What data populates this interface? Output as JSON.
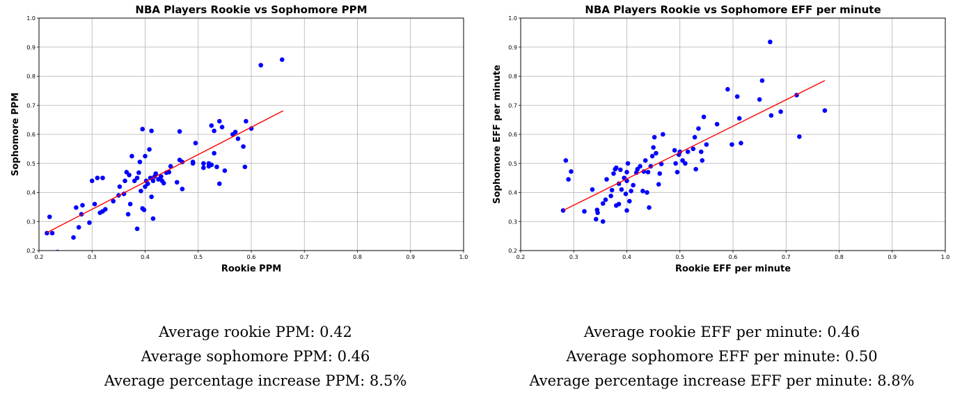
{
  "chart_data": [
    {
      "type": "scatter",
      "title": "NBA Players Rookie vs Sophomore PPM",
      "xlabel": "Rookie PPM",
      "ylabel": "Sophomore PPM",
      "xlim": [
        0.2,
        1.0
      ],
      "ylim": [
        0.2,
        1.0
      ],
      "xticks": [
        "0.2",
        "0.3",
        "0.4",
        "0.5",
        "0.6",
        "0.7",
        "0.8",
        "0.9",
        "1.0"
      ],
      "yticks": [
        "0.2",
        "0.3",
        "0.4",
        "0.5",
        "0.6",
        "0.7",
        "0.8",
        "0.9",
        "1.0"
      ],
      "grid": true,
      "point_color": "#0000ff",
      "line_color": "#ff0000",
      "trendline": {
        "x": [
          0.215,
          0.66
        ],
        "y": [
          0.262,
          0.681
        ]
      },
      "points": [
        [
          0.215,
          0.26
        ],
        [
          0.22,
          0.316
        ],
        [
          0.225,
          0.26
        ],
        [
          0.235,
          0.195
        ],
        [
          0.265,
          0.245
        ],
        [
          0.27,
          0.348
        ],
        [
          0.275,
          0.28
        ],
        [
          0.28,
          0.325
        ],
        [
          0.282,
          0.356
        ],
        [
          0.295,
          0.296
        ],
        [
          0.3,
          0.44
        ],
        [
          0.305,
          0.36
        ],
        [
          0.31,
          0.45
        ],
        [
          0.315,
          0.33
        ],
        [
          0.32,
          0.45
        ],
        [
          0.32,
          0.335
        ],
        [
          0.325,
          0.342
        ],
        [
          0.34,
          0.37
        ],
        [
          0.35,
          0.39
        ],
        [
          0.352,
          0.42
        ],
        [
          0.36,
          0.395
        ],
        [
          0.362,
          0.44
        ],
        [
          0.365,
          0.47
        ],
        [
          0.368,
          0.325
        ],
        [
          0.37,
          0.46
        ],
        [
          0.372,
          0.36
        ],
        [
          0.375,
          0.525
        ],
        [
          0.38,
          0.44
        ],
        [
          0.385,
          0.275
        ],
        [
          0.385,
          0.45
        ],
        [
          0.388,
          0.468
        ],
        [
          0.39,
          0.505
        ],
        [
          0.392,
          0.405
        ],
        [
          0.395,
          0.618
        ],
        [
          0.395,
          0.345
        ],
        [
          0.398,
          0.34
        ],
        [
          0.4,
          0.42
        ],
        [
          0.4,
          0.525
        ],
        [
          0.402,
          0.44
        ],
        [
          0.405,
          0.43
        ],
        [
          0.408,
          0.548
        ],
        [
          0.41,
          0.45
        ],
        [
          0.412,
          0.612
        ],
        [
          0.412,
          0.385
        ],
        [
          0.415,
          0.31
        ],
        [
          0.415,
          0.44
        ],
        [
          0.418,
          0.455
        ],
        [
          0.42,
          0.465
        ],
        [
          0.425,
          0.445
        ],
        [
          0.43,
          0.455
        ],
        [
          0.432,
          0.44
        ],
        [
          0.435,
          0.432
        ],
        [
          0.44,
          0.468
        ],
        [
          0.445,
          0.47
        ],
        [
          0.448,
          0.49
        ],
        [
          0.46,
          0.435
        ],
        [
          0.465,
          0.512
        ],
        [
          0.465,
          0.61
        ],
        [
          0.47,
          0.412
        ],
        [
          0.47,
          0.505
        ],
        [
          0.49,
          0.5
        ],
        [
          0.495,
          0.57
        ],
        [
          0.49,
          0.505
        ],
        [
          0.51,
          0.5
        ],
        [
          0.51,
          0.485
        ],
        [
          0.52,
          0.5
        ],
        [
          0.52,
          0.49
        ],
        [
          0.525,
          0.495
        ],
        [
          0.525,
          0.63
        ],
        [
          0.53,
          0.612
        ],
        [
          0.53,
          0.535
        ],
        [
          0.535,
          0.488
        ],
        [
          0.54,
          0.43
        ],
        [
          0.54,
          0.645
        ],
        [
          0.545,
          0.625
        ],
        [
          0.55,
          0.475
        ],
        [
          0.565,
          0.6
        ],
        [
          0.57,
          0.608
        ],
        [
          0.575,
          0.585
        ],
        [
          0.585,
          0.558
        ],
        [
          0.588,
          0.488
        ],
        [
          0.59,
          0.645
        ],
        [
          0.6,
          0.62
        ],
        [
          0.618,
          0.838
        ],
        [
          0.658,
          0.857
        ]
      ]
    },
    {
      "type": "scatter",
      "title": "NBA Players Rookie vs Sophomore EFF per minute",
      "xlabel": "Rookie EFF per minute",
      "ylabel": "Sophomore EFF per minute",
      "xlim": [
        0.2,
        1.0
      ],
      "ylim": [
        0.2,
        1.0
      ],
      "xticks": [
        "0.2",
        "0.3",
        "0.4",
        "0.5",
        "0.6",
        "0.7",
        "0.8",
        "0.9",
        "1.0"
      ],
      "yticks": [
        "0.2",
        "0.3",
        "0.4",
        "0.5",
        "0.6",
        "0.7",
        "0.8",
        "0.9",
        "1.0"
      ],
      "grid": true,
      "point_color": "#0000ff",
      "line_color": "#ff0000",
      "trendline": {
        "x": [
          0.28,
          0.773
        ],
        "y": [
          0.338,
          0.785
        ]
      },
      "points": [
        [
          0.28,
          0.338
        ],
        [
          0.285,
          0.51
        ],
        [
          0.29,
          0.445
        ],
        [
          0.295,
          0.472
        ],
        [
          0.32,
          0.335
        ],
        [
          0.335,
          0.41
        ],
        [
          0.342,
          0.308
        ],
        [
          0.344,
          0.34
        ],
        [
          0.345,
          0.33
        ],
        [
          0.355,
          0.3
        ],
        [
          0.355,
          0.362
        ],
        [
          0.36,
          0.375
        ],
        [
          0.362,
          0.445
        ],
        [
          0.37,
          0.388
        ],
        [
          0.372,
          0.408
        ],
        [
          0.375,
          0.465
        ],
        [
          0.378,
          0.48
        ],
        [
          0.38,
          0.355
        ],
        [
          0.38,
          0.485
        ],
        [
          0.385,
          0.36
        ],
        [
          0.385,
          0.43
        ],
        [
          0.388,
          0.478
        ],
        [
          0.39,
          0.41
        ],
        [
          0.395,
          0.45
        ],
        [
          0.398,
          0.395
        ],
        [
          0.4,
          0.338
        ],
        [
          0.4,
          0.44
        ],
        [
          0.4,
          0.47
        ],
        [
          0.402,
          0.5
        ],
        [
          0.405,
          0.37
        ],
        [
          0.408,
          0.405
        ],
        [
          0.412,
          0.425
        ],
        [
          0.418,
          0.468
        ],
        [
          0.42,
          0.48
        ],
        [
          0.425,
          0.49
        ],
        [
          0.43,
          0.405
        ],
        [
          0.432,
          0.472
        ],
        [
          0.435,
          0.51
        ],
        [
          0.438,
          0.4
        ],
        [
          0.44,
          0.47
        ],
        [
          0.442,
          0.348
        ],
        [
          0.445,
          0.49
        ],
        [
          0.448,
          0.525
        ],
        [
          0.45,
          0.555
        ],
        [
          0.452,
          0.59
        ],
        [
          0.455,
          0.535
        ],
        [
          0.46,
          0.428
        ],
        [
          0.462,
          0.465
        ],
        [
          0.465,
          0.498
        ],
        [
          0.468,
          0.6
        ],
        [
          0.49,
          0.545
        ],
        [
          0.492,
          0.5
        ],
        [
          0.495,
          0.47
        ],
        [
          0.498,
          0.53
        ],
        [
          0.5,
          0.54
        ],
        [
          0.505,
          0.51
        ],
        [
          0.51,
          0.5
        ],
        [
          0.515,
          0.54
        ],
        [
          0.525,
          0.55
        ],
        [
          0.528,
          0.59
        ],
        [
          0.53,
          0.48
        ],
        [
          0.535,
          0.62
        ],
        [
          0.54,
          0.54
        ],
        [
          0.542,
          0.51
        ],
        [
          0.545,
          0.66
        ],
        [
          0.55,
          0.565
        ],
        [
          0.57,
          0.635
        ],
        [
          0.59,
          0.755
        ],
        [
          0.598,
          0.565
        ],
        [
          0.608,
          0.73
        ],
        [
          0.612,
          0.655
        ],
        [
          0.615,
          0.57
        ],
        [
          0.65,
          0.72
        ],
        [
          0.655,
          0.785
        ],
        [
          0.67,
          0.918
        ],
        [
          0.672,
          0.665
        ],
        [
          0.69,
          0.678
        ],
        [
          0.72,
          0.735
        ],
        [
          0.725,
          0.592
        ],
        [
          0.773,
          0.682
        ]
      ]
    }
  ],
  "stats_left": [
    "Average rookie PPM: 0.42",
    "Average sophomore PPM: 0.46",
    "Average percentage increase PPM: 8.5%"
  ],
  "stats_right": [
    "Average rookie EFF per minute: 0.46",
    "Average sophomore EFF per minute: 0.50",
    "Average percentage increase EFF per minute: 8.8%"
  ]
}
